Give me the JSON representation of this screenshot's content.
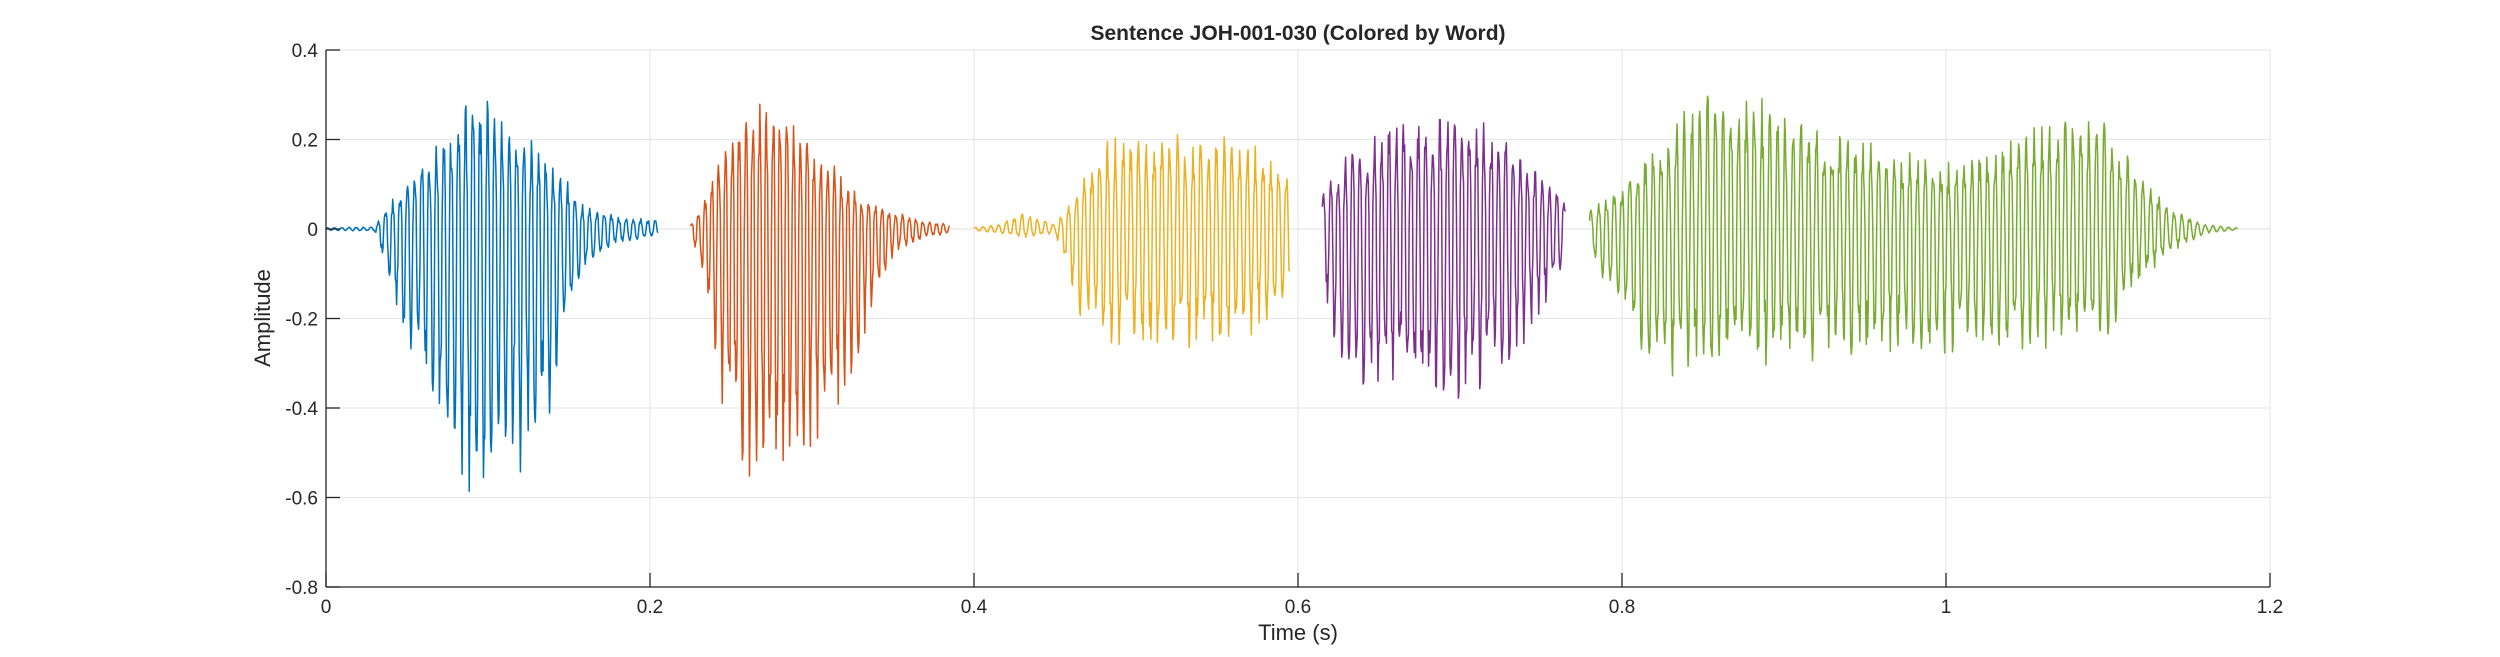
{
  "chart_data": {
    "type": "line",
    "title": "Sentence JOH-001-030 (Colored by Word)",
    "xlabel": "Time (s)",
    "ylabel": "Amplitude",
    "xlim": [
      0,
      1.2
    ],
    "ylim": [
      -0.8,
      0.4
    ],
    "xticks": [
      0,
      0.2,
      0.4,
      0.6,
      0.8,
      1,
      1.2
    ],
    "xtick_labels": [
      "0",
      "0.2",
      "0.4",
      "0.6",
      "0.8",
      "1",
      "1.2"
    ],
    "yticks": [
      -0.8,
      -0.6,
      -0.4,
      -0.2,
      0,
      0.2,
      0.4
    ],
    "ytick_labels": [
      "-0.8",
      "-0.6",
      "-0.4",
      "-0.2",
      "0",
      "0.2",
      "0.4"
    ],
    "grid": true,
    "series": [
      {
        "color": "#0072BD",
        "t_start": 0.0,
        "t_end": 0.205,
        "envelope_times": [
          0.0,
          0.03,
          0.045,
          0.06,
          0.075,
          0.09,
          0.1,
          0.12,
          0.14,
          0.16,
          0.18,
          0.205
        ],
        "envelope_upper": [
          0.003,
          0.005,
          0.09,
          0.16,
          0.23,
          0.3,
          0.3,
          0.22,
          0.16,
          0.05,
          0.03,
          0.02
        ],
        "envelope_lower": [
          -0.003,
          -0.005,
          -0.2,
          -0.36,
          -0.5,
          -0.63,
          -0.58,
          -0.55,
          -0.4,
          -0.1,
          -0.03,
          -0.02
        ],
        "cycle_period": 0.0045
      },
      {
        "color": "#D95319",
        "t_start": 0.225,
        "t_end": 0.385,
        "envelope_times": [
          0.225,
          0.235,
          0.245,
          0.26,
          0.275,
          0.29,
          0.31,
          0.33,
          0.35,
          0.37,
          0.385
        ],
        "envelope_upper": [
          0.01,
          0.08,
          0.2,
          0.27,
          0.3,
          0.25,
          0.16,
          0.08,
          0.04,
          0.02,
          0.01
        ],
        "envelope_lower": [
          -0.01,
          -0.15,
          -0.42,
          -0.56,
          -0.58,
          -0.55,
          -0.48,
          -0.3,
          -0.06,
          -0.02,
          -0.01
        ],
        "cycle_period": 0.0042
      },
      {
        "color": "#EDB120",
        "t_start": 0.4,
        "t_end": 0.595,
        "envelope_times": [
          0.4,
          0.415,
          0.43,
          0.45,
          0.465,
          0.48,
          0.5,
          0.53,
          0.56,
          0.58,
          0.595
        ],
        "envelope_upper": [
          0.004,
          0.01,
          0.04,
          0.01,
          0.1,
          0.2,
          0.22,
          0.22,
          0.21,
          0.18,
          0.12
        ],
        "envelope_lower": [
          -0.004,
          -0.01,
          -0.02,
          -0.01,
          -0.2,
          -0.26,
          -0.28,
          -0.28,
          -0.26,
          -0.22,
          -0.15
        ],
        "cycle_period": 0.0048
      },
      {
        "color": "#7E2F8E",
        "t_start": 0.615,
        "t_end": 0.765,
        "envelope_times": [
          0.615,
          0.625,
          0.64,
          0.66,
          0.68,
          0.7,
          0.72,
          0.74,
          0.755,
          0.765
        ],
        "envelope_upper": [
          0.08,
          0.15,
          0.2,
          0.25,
          0.27,
          0.28,
          0.25,
          0.17,
          0.11,
          0.08
        ],
        "envelope_lower": [
          -0.1,
          -0.32,
          -0.38,
          -0.37,
          -0.41,
          -0.41,
          -0.36,
          -0.26,
          -0.15,
          -0.1
        ],
        "cycle_period": 0.0045
      },
      {
        "color": "#77AC30",
        "t_start": 0.78,
        "t_end": 1.18,
        "envelope_times": [
          0.78,
          0.8,
          0.82,
          0.85,
          0.87,
          0.9,
          0.95,
          1.0,
          1.03,
          1.06,
          1.08,
          1.1,
          1.12,
          1.14,
          1.16,
          1.18
        ],
        "envelope_upper": [
          0.05,
          0.1,
          0.2,
          0.32,
          0.33,
          0.27,
          0.2,
          0.15,
          0.18,
          0.24,
          0.27,
          0.25,
          0.12,
          0.05,
          0.01,
          0.002
        ],
        "envelope_lower": [
          -0.05,
          -0.2,
          -0.33,
          -0.33,
          -0.32,
          -0.3,
          -0.29,
          -0.28,
          -0.27,
          -0.27,
          -0.27,
          -0.24,
          -0.12,
          -0.05,
          -0.01,
          -0.002
        ],
        "cycle_period": 0.0048
      }
    ]
  }
}
